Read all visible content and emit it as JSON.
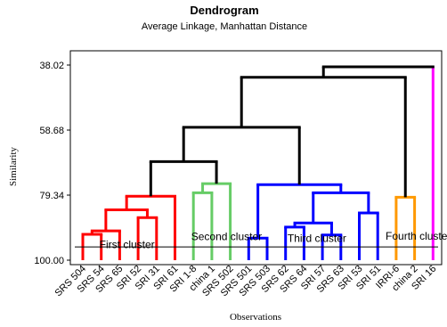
{
  "chart_data": {
    "type": "dendrogram",
    "title": "Dendrogram",
    "subtitle": "Average Linkage, Manhattan Distance",
    "ylabel": "Similarity",
    "xlabel": "Observations",
    "y_ticks": [
      "38.02",
      "58.68",
      "79.34",
      "100.00"
    ],
    "ylim": [
      100,
      38.02
    ],
    "leaves": [
      "SRS 504",
      "SRS 54",
      "SRS 65",
      "SRI 52",
      "SRI 31",
      "SRI 61",
      "SRI 1-8",
      "china 1",
      "SRS 502",
      "SRS 501",
      "SRS 503",
      "SRS 62",
      "SRS 64",
      "SRI 57",
      "SRS 63",
      "SRI 53",
      "SRI 51",
      "IRRI-6",
      "china 2",
      "SRI 16"
    ],
    "merges": [
      {
        "a": 0,
        "b": 1,
        "h": 91.8,
        "color": "#ff0000"
      },
      {
        "a": 20,
        "b": 2,
        "h": 90.7,
        "color": "#ff0000"
      },
      {
        "a": 3,
        "b": 4,
        "h": 86.5,
        "color": "#ff0000"
      },
      {
        "a": 21,
        "b": 22,
        "h": 84.0,
        "color": "#ff0000"
      },
      {
        "a": 23,
        "b": 5,
        "h": 79.7,
        "color": "#ff0000"
      },
      {
        "a": 6,
        "b": 7,
        "h": 78.6,
        "color": "#66cc66"
      },
      {
        "a": 25,
        "b": 8,
        "h": 75.7,
        "color": "#66cc66"
      },
      {
        "a": 9,
        "b": 10,
        "h": 93.0,
        "color": "#0000ff"
      },
      {
        "a": 11,
        "b": 12,
        "h": 89.5,
        "color": "#0000ff"
      },
      {
        "a": 13,
        "b": 14,
        "h": 92.0,
        "color": "#0000ff"
      },
      {
        "a": 28,
        "b": 29,
        "h": 88.2,
        "color": "#0000ff"
      },
      {
        "a": 15,
        "b": 16,
        "h": 85.0,
        "color": "#0000ff"
      },
      {
        "a": 30,
        "b": 31,
        "h": 78.6,
        "color": "#0000ff"
      },
      {
        "a": 27,
        "b": 32,
        "h": 76.0,
        "color": "#0000ff"
      },
      {
        "a": 17,
        "b": 18,
        "h": 80.0,
        "color": "#ff9900"
      },
      {
        "a": 24,
        "b": 26,
        "h": 68.7,
        "color": "#000000"
      },
      {
        "a": 35,
        "b": 33,
        "h": 57.8,
        "color": "#000000"
      },
      {
        "a": 36,
        "b": 34,
        "h": 41.9,
        "color": "#000000"
      },
      {
        "a": 37,
        "b": 19,
        "h": 38.6,
        "color": "#000000",
        "right_color": "#ff00ff"
      }
    ],
    "cluster_labels": [
      {
        "text": "First cluster",
        "h": 95.0,
        "leaf_pos": 2.4
      },
      {
        "text": "Second cluster",
        "h": 92.5,
        "leaf_pos": 7.8
      },
      {
        "text": "Third cluster",
        "h": 93.0,
        "leaf_pos": 12.7
      },
      {
        "text": "Fourth cluster",
        "h": 92.3,
        "leaf_pos": 18.2
      }
    ],
    "cut_line": 95.8
  }
}
